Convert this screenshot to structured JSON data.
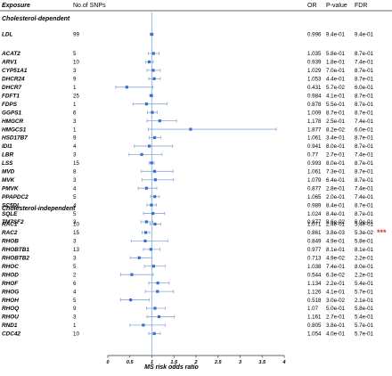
{
  "headers": {
    "exposure": "Exposure",
    "nsnps": "No.of SNPs",
    "or": "OR",
    "pval": "P-value",
    "fdr": "FDR"
  },
  "sections": [
    {
      "title": "Cholesterol-dependent",
      "genes": [
        "LDL",
        "ACAT2",
        "ARV1",
        "CYP51A1",
        "DHCR24",
        "DHCR7",
        "FDFT1",
        "FDPS",
        "GGPS1",
        "HMGCR",
        "HMGCS1",
        "HSD17B7",
        "IDI1",
        "LBR",
        "LSS",
        "MVD",
        "MVK",
        "PMVK",
        "PPAPDC2",
        "SC5DL",
        "SQLE",
        "TM7SF2"
      ]
    },
    {
      "title": "Cholesterol-independent",
      "genes": [
        "RAC1",
        "RAC2",
        "RHOB",
        "RHOBTB1",
        "RHOBTB2",
        "RHOC",
        "RHOD",
        "RHOF",
        "RHOG",
        "RHOH",
        "RHOQ",
        "RHOU",
        "RND1",
        "CDC42"
      ]
    }
  ],
  "significance_marker": {
    "gene": "RAC2",
    "text": "***",
    "color": "#e03030"
  },
  "colors": {
    "point": "#3a6ccf",
    "ci": "#8aa4d8",
    "refline": "#9fc4e8",
    "axis": "#333333",
    "marker": "#e03030"
  },
  "chart_data": {
    "type": "forest",
    "xlabel": "MS risk odds ratio",
    "xlim": [
      0,
      4
    ],
    "xticks": [
      "0",
      "0.5",
      "1",
      "1.5",
      "2",
      "2.5",
      "3",
      "3.5",
      "4"
    ],
    "reference_line": 1,
    "rows": [
      {
        "gene": "LDL",
        "snps": "99",
        "or": 0.996,
        "or_text": "0.996",
        "p": "9.4e-01",
        "fdr": "9.4e-01",
        "lo": 0.96,
        "hi": 1.03
      },
      {
        "gene": "ACAT2",
        "snps": "5",
        "or": 1.035,
        "or_text": "1.035",
        "p": "5.8e-01",
        "fdr": "8.7e-01",
        "lo": 0.92,
        "hi": 1.16
      },
      {
        "gene": "ARV1",
        "snps": "10",
        "or": 0.939,
        "or_text": "0.939",
        "p": "1.8e-01",
        "fdr": "7.4e-01",
        "lo": 0.86,
        "hi": 1.03
      },
      {
        "gene": "CYP51A1",
        "snps": "3",
        "or": 1.029,
        "or_text": "1.029",
        "p": "7.0e-01",
        "fdr": "8.7e-01",
        "lo": 0.89,
        "hi": 1.19
      },
      {
        "gene": "DHCR24",
        "snps": "9",
        "or": 1.053,
        "or_text": "1.053",
        "p": "4.4e-01",
        "fdr": "8.7e-01",
        "lo": 0.93,
        "hi": 1.19
      },
      {
        "gene": "DHCR7",
        "snps": "1",
        "or": 0.431,
        "or_text": "0.431",
        "p": "5.7e-02",
        "fdr": "6.0e-01",
        "lo": 0.18,
        "hi": 1.02
      },
      {
        "gene": "FDFT1",
        "snps": "25",
        "or": 0.984,
        "or_text": "0.984",
        "p": "4.1e-01",
        "fdr": "8.7e-01",
        "lo": 0.95,
        "hi": 1.02
      },
      {
        "gene": "FDPS",
        "snps": "1",
        "or": 0.878,
        "or_text": "0.878",
        "p": "5.5e-01",
        "fdr": "8.7e-01",
        "lo": 0.57,
        "hi": 1.34
      },
      {
        "gene": "GGPS1",
        "snps": "6",
        "or": 1.009,
        "or_text": "1.009",
        "p": "8.7e-01",
        "fdr": "8.7e-01",
        "lo": 0.9,
        "hi": 1.12
      },
      {
        "gene": "HMGCR",
        "snps": "3",
        "or": 1.178,
        "or_text": "1.178",
        "p": "2.5e-01",
        "fdr": "7.4e-01",
        "lo": 0.89,
        "hi": 1.56
      },
      {
        "gene": "HMGCS1",
        "snps": "1",
        "or": 1.877,
        "or_text": "1.877",
        "p": "8.2e-02",
        "fdr": "6.0e-01",
        "lo": 0.92,
        "hi": 3.82
      },
      {
        "gene": "HSD17B7",
        "snps": "9",
        "or": 1.061,
        "or_text": "1.061",
        "p": "3.4e-01",
        "fdr": "8.7e-01",
        "lo": 0.94,
        "hi": 1.2
      },
      {
        "gene": "IDI1",
        "snps": "4",
        "or": 0.941,
        "or_text": "0.941",
        "p": "8.0e-01",
        "fdr": "8.7e-01",
        "lo": 0.6,
        "hi": 1.47
      },
      {
        "gene": "LBR",
        "snps": "3",
        "or": 0.77,
        "or_text": "0.77",
        "p": "2.7e-01",
        "fdr": "7.4e-01",
        "lo": 0.48,
        "hi": 1.23
      },
      {
        "gene": "LSS",
        "snps": "15",
        "or": 0.993,
        "or_text": "0.993",
        "p": "8.0e-01",
        "fdr": "8.7e-01",
        "lo": 0.94,
        "hi": 1.05
      },
      {
        "gene": "MVD",
        "snps": "8",
        "or": 1.061,
        "or_text": "1.061",
        "p": "7.3e-01",
        "fdr": "8.7e-01",
        "lo": 0.76,
        "hi": 1.48
      },
      {
        "gene": "MVK",
        "snps": "3",
        "or": 1.079,
        "or_text": "1.079",
        "p": "6.4e-01",
        "fdr": "8.7e-01",
        "lo": 0.78,
        "hi": 1.49
      },
      {
        "gene": "PMVK",
        "snps": "4",
        "or": 0.877,
        "or_text": "0.877",
        "p": "2.8e-01",
        "fdr": "7.4e-01",
        "lo": 0.69,
        "hi": 1.11
      },
      {
        "gene": "PPAPDC2",
        "snps": "5",
        "or": 1.065,
        "or_text": "1.065",
        "p": "2.0e-01",
        "fdr": "7.4e-01",
        "lo": 0.97,
        "hi": 1.17
      },
      {
        "gene": "SC5DL",
        "snps": "4",
        "or": 0.989,
        "or_text": "0.989",
        "p": "8.4e-01",
        "fdr": "8.7e-01",
        "lo": 0.89,
        "hi": 1.1
      },
      {
        "gene": "SQLE",
        "snps": "5",
        "or": 1.024,
        "or_text": "1.024",
        "p": "8.4e-01",
        "fdr": "8.7e-01",
        "lo": 0.81,
        "hi": 1.29
      },
      {
        "gene": "TM7SF2",
        "snps": "3",
        "or": 0.877,
        "or_text": "0.877",
        "p": "8.6e-02",
        "fdr": "6.0e-01",
        "lo": 0.75,
        "hi": 1.02
      },
      {
        "gene": "RAC1",
        "snps": "10",
        "or": 1.071,
        "or_text": "1.071",
        "p": "2.4e-01",
        "fdr": "5.4e-01",
        "lo": 0.96,
        "hi": 1.2
      },
      {
        "gene": "RAC2",
        "snps": "15",
        "or": 0.861,
        "or_text": "0.861",
        "p": "3.8e-03",
        "fdr": "5.3e-02",
        "lo": 0.78,
        "hi": 0.95
      },
      {
        "gene": "RHOB",
        "snps": "3",
        "or": 0.849,
        "or_text": "0.849",
        "p": "4.9e-01",
        "fdr": "5.8e-01",
        "lo": 0.53,
        "hi": 1.36
      },
      {
        "gene": "RHOBTB1",
        "snps": "13",
        "or": 0.977,
        "or_text": "0.977",
        "p": "8.1e-01",
        "fdr": "8.1e-01",
        "lo": 0.81,
        "hi": 1.18
      },
      {
        "gene": "RHOBTB2",
        "snps": "3",
        "or": 0.713,
        "or_text": "0.713",
        "p": "4.9e-02",
        "fdr": "2.2e-01",
        "lo": 0.51,
        "hi": 1.0
      },
      {
        "gene": "RHOC",
        "snps": "5",
        "or": 1.038,
        "or_text": "1.038",
        "p": "7.4e-01",
        "fdr": "8.0e-01",
        "lo": 0.83,
        "hi": 1.3
      },
      {
        "gene": "RHOD",
        "snps": "2",
        "or": 0.544,
        "or_text": "0.544",
        "p": "6.3e-02",
        "fdr": "2.2e-01",
        "lo": 0.29,
        "hi": 1.03
      },
      {
        "gene": "RHOF",
        "snps": "6",
        "or": 1.134,
        "or_text": "1.134",
        "p": "2.2e-01",
        "fdr": "5.4e-01",
        "lo": 0.93,
        "hi": 1.39
      },
      {
        "gene": "RHOG",
        "snps": "4",
        "or": 1.126,
        "or_text": "1.126",
        "p": "4.1e-01",
        "fdr": "5.7e-01",
        "lo": 0.85,
        "hi": 1.49
      },
      {
        "gene": "RHOH",
        "snps": "5",
        "or": 0.518,
        "or_text": "0.518",
        "p": "3.0e-02",
        "fdr": "2.1e-01",
        "lo": 0.29,
        "hi": 0.94
      },
      {
        "gene": "RHOQ",
        "snps": "9",
        "or": 1.07,
        "or_text": "1.07",
        "p": "5.0e-01",
        "fdr": "5.8e-01",
        "lo": 0.88,
        "hi": 1.3
      },
      {
        "gene": "RHOU",
        "snps": "3",
        "or": 1.161,
        "or_text": "1.161",
        "p": "2.7e-01",
        "fdr": "5.4e-01",
        "lo": 0.89,
        "hi": 1.51
      },
      {
        "gene": "RND1",
        "snps": "1",
        "or": 0.805,
        "or_text": "0.805",
        "p": "3.8e-01",
        "fdr": "5.7e-01",
        "lo": 0.5,
        "hi": 1.3
      },
      {
        "gene": "CDC42",
        "snps": "10",
        "or": 1.054,
        "or_text": "1.054",
        "p": "4.0e-01",
        "fdr": "5.7e-01",
        "lo": 0.93,
        "hi": 1.19
      }
    ]
  }
}
